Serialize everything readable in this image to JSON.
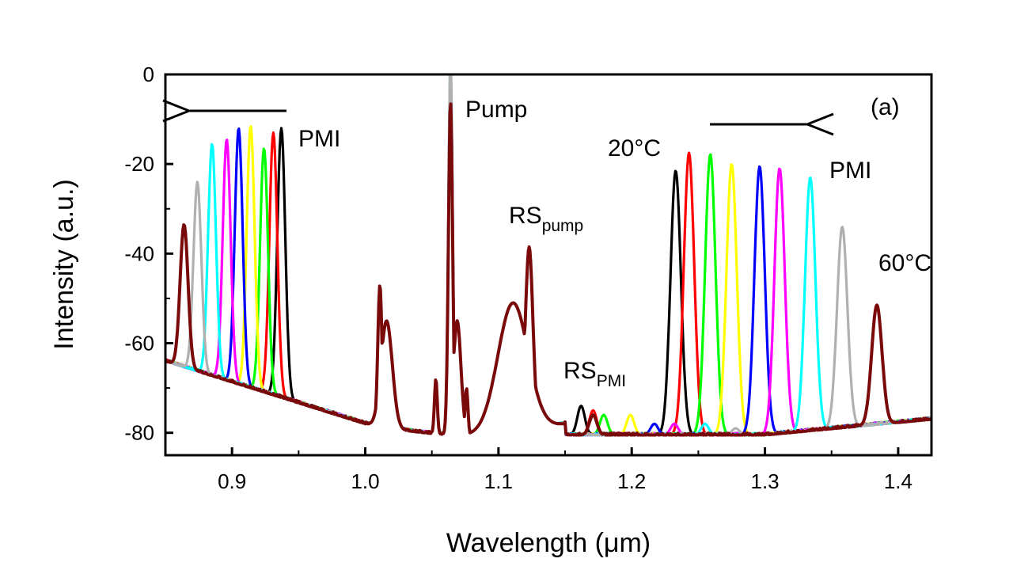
{
  "chart_data": {
    "type": "line",
    "title": "",
    "xlabel": "Wavelength (μm)",
    "ylabel": "Intensity (a.u.)",
    "xlim": [
      0.85,
      1.425
    ],
    "ylim": [
      -85,
      0
    ],
    "x_ticks": [
      "0.9",
      "1.0",
      "1.1",
      "1.2",
      "1.3",
      "1.4"
    ],
    "y_ticks": [
      "0",
      "-20",
      "-40",
      "-60",
      "-80"
    ],
    "grid": false,
    "legend": "none",
    "annotations": {
      "panel": "(a)",
      "pump": "Pump",
      "pmi_left": "PMI",
      "pmi_right": "PMI",
      "temp_low": "20°C",
      "temp_high": "60°C",
      "rs_pump_main": "RS",
      "rs_pump_sub": "pump",
      "rs_pmi_main": "RS",
      "rs_pmi_sub": "PMI"
    },
    "series": [
      {
        "color": "#000000",
        "pmi_peak": [
          0.937,
          -12
        ],
        "signal_peak": [
          1.233,
          -21.5
        ],
        "rs_pmi_peak": [
          1.162,
          -74
        ]
      },
      {
        "color": "#ff0000",
        "pmi_peak": [
          0.931,
          -13
        ],
        "signal_peak": [
          1.243,
          -17.5
        ],
        "rs_pmi_peak": [
          1.171,
          -75
        ]
      },
      {
        "color": "#00ff00",
        "pmi_peak": [
          0.924,
          -16.5
        ],
        "signal_peak": [
          1.259,
          -17.8
        ],
        "rs_pmi_peak": [
          1.179,
          -76
        ]
      },
      {
        "color": "#ffff00",
        "pmi_peak": [
          0.914,
          -11.5
        ],
        "signal_peak": [
          1.275,
          -20
        ],
        "rs_pmi_peak": [
          1.199,
          -76
        ]
      },
      {
        "color": "#0000ff",
        "pmi_peak": [
          0.905,
          -12
        ],
        "signal_peak": [
          1.296,
          -20.5
        ],
        "rs_pmi_peak": [
          1.217,
          -78
        ]
      },
      {
        "color": "#ff00ff",
        "pmi_peak": [
          0.896,
          -14.5
        ],
        "signal_peak": [
          1.311,
          -21
        ],
        "rs_pmi_peak": [
          1.232,
          -78
        ]
      },
      {
        "color": "#00ffff",
        "pmi_peak": [
          0.885,
          -15.5
        ],
        "signal_peak": [
          1.334,
          -23
        ],
        "rs_pmi_peak": [
          1.255,
          -78
        ]
      },
      {
        "color": "#b0b0b0",
        "pmi_peak": [
          0.874,
          -24
        ],
        "signal_peak": [
          1.358,
          -34
        ],
        "rs_pmi_peak": [
          1.278,
          -79
        ]
      },
      {
        "color": "#7a0a0a",
        "pmi_peak": [
          0.864,
          -33.5
        ],
        "signal_peak": [
          1.384,
          -51.5
        ],
        "rs_pmi_peak": [
          1.171,
          -76
        ]
      }
    ],
    "shared_features": {
      "pump_peak": [
        1.064,
        -6
      ],
      "rs_pump_peak": [
        1.123,
        -38.5
      ],
      "side_peak": [
        1.011,
        -47
      ],
      "baseline_left": -64,
      "baseline_mid": -78,
      "baseline_right": -77
    }
  }
}
